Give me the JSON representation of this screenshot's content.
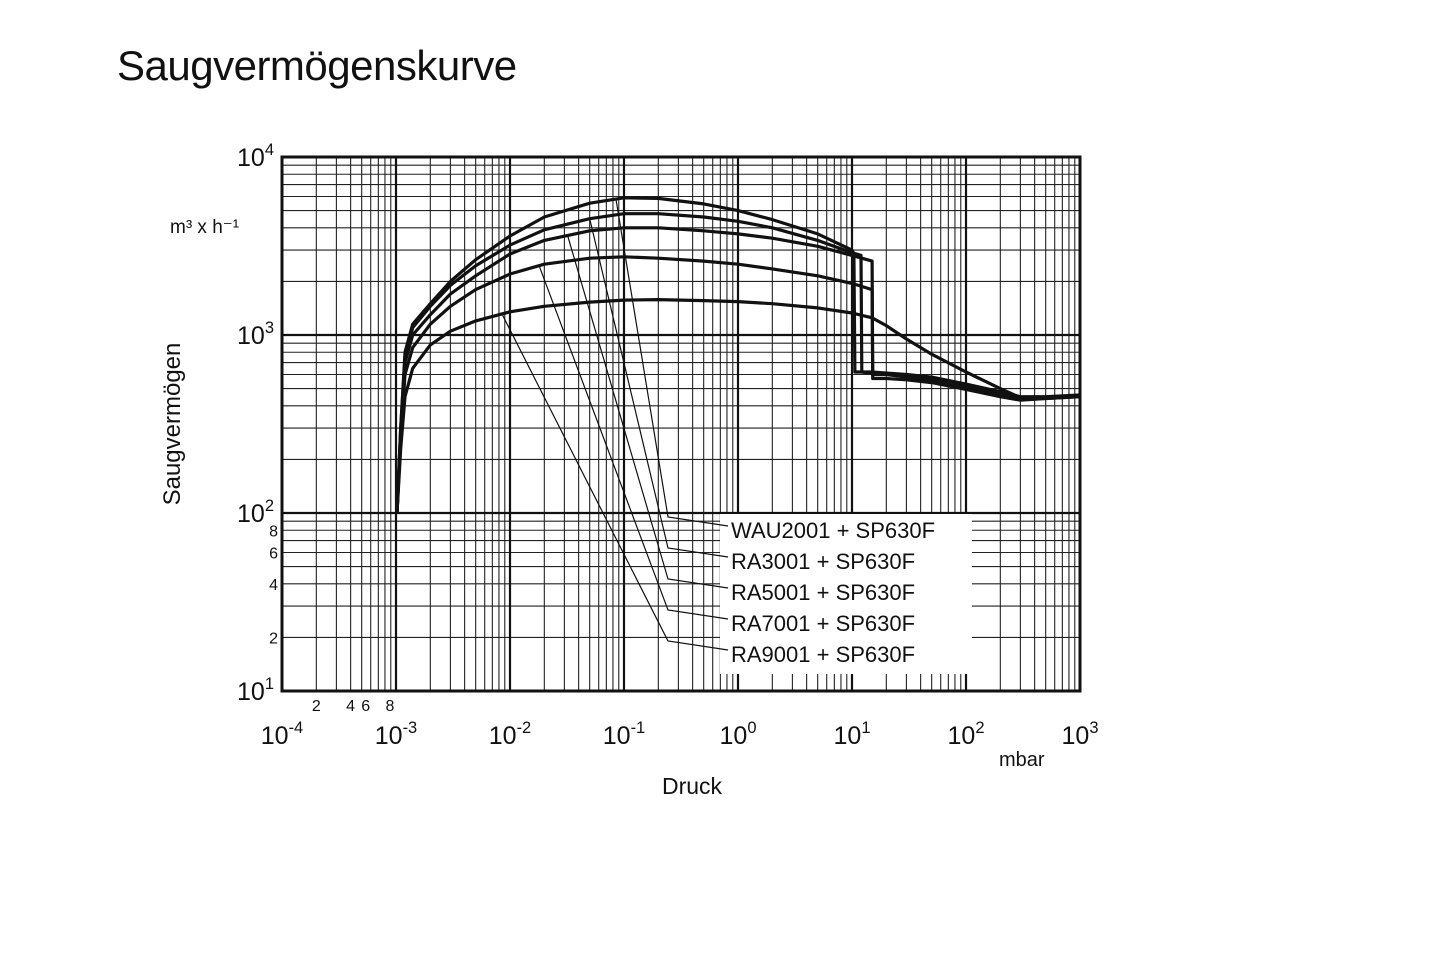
{
  "title": "Saugvermögenskurve",
  "chart_data": {
    "type": "line",
    "title": "Saugvermögenskurve",
    "xlabel": "Druck",
    "x_unit": "mbar",
    "ylabel": "Saugvermögen",
    "y_unit": "m³ x h⁻¹",
    "x_scale": "log",
    "y_scale": "log",
    "xlim": [
      0.0001,
      1000
    ],
    "ylim": [
      10,
      10000
    ],
    "grid": true,
    "legend_placement": "lower-right, with leader lines to the curves",
    "x_ticks": [
      {
        "base": "10",
        "exp": "-4"
      },
      {
        "base": "10",
        "exp": "-3"
      },
      {
        "base": "10",
        "exp": "-2"
      },
      {
        "base": "10",
        "exp": "-1"
      },
      {
        "base": "10",
        "exp": "0"
      },
      {
        "base": "10",
        "exp": "1"
      },
      {
        "base": "10",
        "exp": "2"
      },
      {
        "base": "10",
        "exp": "3"
      }
    ],
    "x_minor_labels": [
      "2",
      "4",
      "6",
      "8"
    ],
    "y_ticks": [
      {
        "base": "10",
        "exp": "1"
      },
      {
        "base": "10",
        "exp": "2"
      },
      {
        "base": "10",
        "exp": "3"
      },
      {
        "base": "10",
        "exp": "4"
      }
    ],
    "y_minor_labels": [
      "2",
      "4",
      "6",
      "8"
    ],
    "series": [
      {
        "name": "WAU2001 + SP630F",
        "x": [
          0.00102,
          0.0011,
          0.0012,
          0.0014,
          0.002,
          0.003,
          0.005,
          0.01,
          0.02,
          0.05,
          0.1,
          0.2,
          0.5,
          1,
          2,
          5,
          10,
          10.4,
          10.6,
          15,
          30,
          50,
          100,
          200,
          300,
          500,
          1000
        ],
        "y": [
          100,
          300,
          800,
          1150,
          1500,
          2000,
          2650,
          3600,
          4600,
          5500,
          5900,
          5850,
          5450,
          5000,
          4450,
          3700,
          3000,
          2850,
          620,
          620,
          600,
          580,
          530,
          480,
          450,
          450,
          460
        ]
      },
      {
        "name": "RA3001 + SP630F",
        "x": [
          0.00102,
          0.0011,
          0.0012,
          0.0014,
          0.002,
          0.003,
          0.005,
          0.01,
          0.02,
          0.05,
          0.1,
          0.2,
          0.5,
          1,
          2,
          5,
          10,
          12,
          12.2,
          15,
          30,
          50,
          100,
          200,
          300,
          500,
          1000
        ],
        "y": [
          100,
          300,
          750,
          1100,
          1450,
          1900,
          2450,
          3200,
          3900,
          4500,
          4800,
          4800,
          4600,
          4350,
          4000,
          3400,
          2900,
          2800,
          620,
          610,
          590,
          570,
          520,
          470,
          445,
          445,
          455
        ]
      },
      {
        "name": "RA5001 + SP630F",
        "x": [
          0.00102,
          0.0011,
          0.0012,
          0.0014,
          0.002,
          0.003,
          0.005,
          0.01,
          0.02,
          0.05,
          0.1,
          0.2,
          0.5,
          1,
          2,
          5,
          10,
          15,
          15.2,
          20,
          30,
          50,
          100,
          200,
          300,
          500,
          1000
        ],
        "y": [
          100,
          280,
          700,
          1000,
          1300,
          1700,
          2150,
          2850,
          3400,
          3850,
          4000,
          4000,
          3850,
          3700,
          3500,
          3150,
          2800,
          2600,
          600,
          600,
          580,
          560,
          510,
          460,
          440,
          445,
          455
        ]
      },
      {
        "name": "RA7001 + SP630F",
        "x": [
          0.00102,
          0.0011,
          0.0012,
          0.0014,
          0.002,
          0.003,
          0.005,
          0.01,
          0.02,
          0.05,
          0.1,
          0.2,
          0.5,
          1,
          2,
          5,
          10,
          15,
          15.2,
          20,
          30,
          50,
          100,
          200,
          300,
          500,
          1000
        ],
        "y": [
          100,
          260,
          600,
          850,
          1150,
          1450,
          1800,
          2200,
          2500,
          2700,
          2750,
          2700,
          2600,
          2500,
          2350,
          2150,
          1950,
          1800,
          570,
          570,
          560,
          540,
          495,
          450,
          430,
          440,
          450
        ]
      },
      {
        "name": "RA9001 + SP630F",
        "x": [
          0.00102,
          0.0011,
          0.0012,
          0.0014,
          0.002,
          0.003,
          0.005,
          0.01,
          0.02,
          0.05,
          0.1,
          0.2,
          0.5,
          1,
          2,
          5,
          10,
          15,
          20,
          30,
          50,
          100,
          200,
          300,
          500,
          1000
        ],
        "y": [
          100,
          230,
          450,
          650,
          880,
          1050,
          1200,
          1350,
          1450,
          1530,
          1570,
          1580,
          1560,
          1540,
          1500,
          1420,
          1330,
          1250,
          1130,
          950,
          780,
          620,
          500,
          445,
          440,
          450
        ]
      }
    ]
  }
}
